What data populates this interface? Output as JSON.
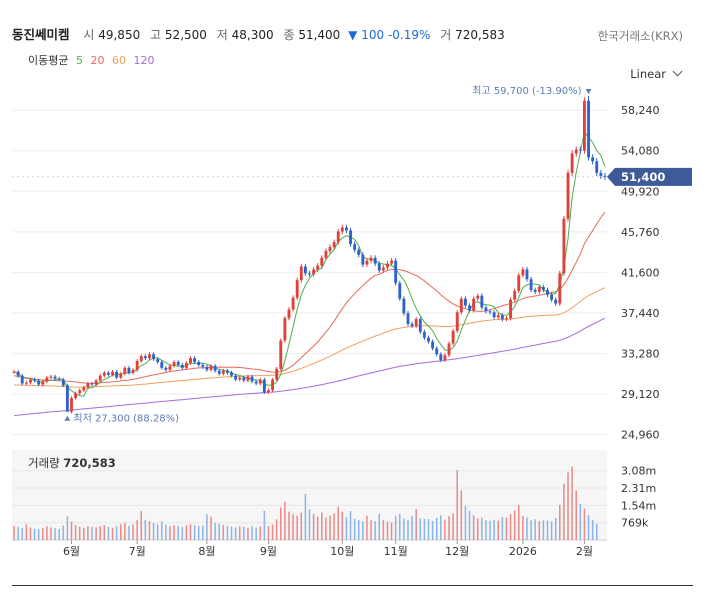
{
  "header": {
    "name": "동진쎄미켐",
    "open_label": "시",
    "open": "49,850",
    "high_label": "고",
    "high": "52,500",
    "low_label": "저",
    "low": "48,300",
    "close_label": "종",
    "close": "51,400",
    "change": "▼ 100",
    "change_pct": "-0.19%",
    "volume_label": "거",
    "volume": "720,583",
    "exchange": "한국거래소(KRX)"
  },
  "ma_legend": {
    "title": "이동평균",
    "items": [
      {
        "period": "5",
        "color": "#4caf50"
      },
      {
        "period": "20",
        "color": "#e86a5d"
      },
      {
        "period": "60",
        "color": "#f0a060"
      },
      {
        "period": "120",
        "color": "#a86ad8"
      }
    ]
  },
  "scale": {
    "label": "Linear"
  },
  "chart_data": {
    "type": "candlestick",
    "y_ticks": [
      "58,240",
      "54,080",
      "49,920",
      "45,760",
      "41,600",
      "37,440",
      "33,280",
      "29,120",
      "24,960"
    ],
    "y_tick_values": [
      58240,
      54080,
      49920,
      45760,
      41600,
      37440,
      33280,
      29120,
      24960
    ],
    "ylim": [
      24400,
      59800
    ],
    "x_ticks": [
      "6월",
      "7월",
      "8월",
      "9월",
      "10월",
      "11월",
      "12월",
      "2026",
      "2월"
    ],
    "x_tick_index": [
      14,
      30,
      47,
      62,
      80,
      93,
      108,
      124,
      139
    ],
    "n_days": 145,
    "price_badge": "51,400",
    "price_badge_value": 51400,
    "max_label": "최고 59,700 (-13.90%)",
    "max_value": 59700,
    "max_index": 140,
    "min_label": "최저 27,300 (88.28%)",
    "min_value": 27300,
    "min_index": 13,
    "closes": [
      31400,
      31000,
      30200,
      30300,
      30600,
      30500,
      30100,
      30400,
      30800,
      30900,
      30700,
      30600,
      30000,
      27300,
      28700,
      29200,
      29500,
      29800,
      30200,
      30100,
      30500,
      31000,
      31300,
      31100,
      31400,
      30800,
      31200,
      31800,
      31300,
      31600,
      32500,
      33000,
      32800,
      33200,
      32700,
      32400,
      31800,
      31600,
      32000,
      32400,
      32100,
      31800,
      32300,
      32800,
      32400,
      32100,
      31900,
      31600,
      32000,
      31500,
      31200,
      31500,
      31300,
      31000,
      30600,
      30800,
      30500,
      30900,
      30400,
      30200,
      30600,
      29300,
      29500,
      30600,
      31700,
      34600,
      36900,
      37800,
      39000,
      40800,
      42200,
      41500,
      41400,
      41900,
      42300,
      43100,
      43800,
      44200,
      44700,
      45800,
      46200,
      45900,
      44500,
      43900,
      43400,
      42400,
      42800,
      43100,
      42500,
      41800,
      42100,
      42500,
      42800,
      40500,
      38900,
      37400,
      36300,
      36100,
      36800,
      35500,
      34900,
      34500,
      33800,
      33200,
      32600,
      33100,
      34300,
      35600,
      37500,
      38900,
      38200,
      37700,
      38900,
      39200,
      38000,
      37600,
      37500,
      37000,
      37200,
      36800,
      36900,
      38800,
      39700,
      41300,
      41900,
      40900,
      39800,
      39600,
      40100,
      39800,
      39300,
      38800,
      38400,
      41500,
      47100,
      51800,
      53800,
      54200,
      54100,
      59200,
      53400,
      53000,
      51800,
      51500,
      51400
    ],
    "ma5": [
      31400,
      31200,
      30867,
      30725,
      30700,
      30520,
      30340,
      30380,
      30540,
      30540,
      30560,
      30680,
      30600,
      29840,
      29460,
      29160,
      28940,
      28900,
      29740,
      29760,
      30020,
      30320,
      30620,
      30800,
      31060,
      31120,
      31160,
      31260,
      31300,
      31340,
      31680,
      32040,
      32240,
      32620,
      32840,
      32820,
      32580,
      32340,
      32100,
      32040,
      31980,
      31940,
      32020,
      32280,
      32280,
      32280,
      32300,
      32160,
      32000,
      31820,
      31640,
      31560,
      31500,
      31300,
      31120,
      31040,
      30840,
      30760,
      30640,
      30560,
      30520,
      30160,
      30000,
      30040,
      30340,
      31140,
      32540,
      34240,
      36000,
      37820,
      39340,
      40260,
      40980,
      41560,
      41860,
      42040,
      42900,
      43460,
      43920,
      44760,
      45140,
      45360,
      45220,
      44960,
      44360,
      43220,
      43000,
      42920,
      42840,
      42520,
      42460,
      42400,
      42340,
      41940,
      41360,
      40820,
      39980,
      38880,
      37900,
      37140,
      36480,
      36100,
      35640,
      34820,
      34200,
      33640,
      33560,
      33880,
      34520,
      35680,
      36700,
      37680,
      38440,
      38580,
      38400,
      38280,
      38240,
      38060,
      37460,
      37220,
      37200,
      37540,
      38080,
      39040,
      40040,
      40340,
      40440,
      40380,
      40300,
      39820,
      39560,
      39340,
      39440,
      40360,
      42140,
      45040,
      49240,
      51860,
      53920,
      56020,
      55440,
      54940,
      54120,
      53600,
      52480
    ],
    "ma20": [
      31000,
      30920,
      30850,
      30780,
      30720,
      30660,
      30600,
      30560,
      30540,
      30520,
      30500,
      30480,
      30460,
      30420,
      30400,
      30360,
      30300,
      30260,
      30220,
      30200,
      30220,
      30270,
      30300,
      30320,
      30360,
      30400,
      30460,
      30520,
      30560,
      30620,
      30700,
      30810,
      30900,
      30990,
      31080,
      31160,
      31250,
      31340,
      31420,
      31480,
      31540,
      31590,
      31640,
      31700,
      31760,
      31800,
      31820,
      31820,
      31850,
      31870,
      31880,
      31870,
      31880,
      31870,
      31860,
      31840,
      31800,
      31750,
      31690,
      31650,
      31600,
      31500,
      31420,
      31370,
      31360,
      31430,
      31580,
      31800,
      32080,
      32450,
      32850,
      33250,
      33630,
      34030,
      34460,
      34960,
      35460,
      35990,
      36580,
      37260,
      37860,
      38480,
      38960,
      39410,
      39830,
      40230,
      40630,
      41000,
      41300,
      41400,
      41620,
      41770,
      41900,
      41910,
      41870,
      41780,
      41640,
      41450,
      41280,
      41010,
      40730,
      40390,
      40040,
      39700,
      39320,
      38960,
      38640,
      38360,
      38150,
      38000,
      37870,
      37740,
      37650,
      37610,
      37600,
      37660,
      37770,
      37900,
      38030,
      38160,
      38290,
      38420,
      38530,
      38720,
      38900,
      39050,
      39100,
      39180,
      39250,
      39340,
      39420,
      39530,
      39610,
      39830,
      40310,
      41010,
      41800,
      42620,
      43460,
      44540,
      45230,
      45880,
      46550,
      47210,
      47760
    ],
    "ma60": [
      30050,
      30040,
      30030,
      30020,
      30000,
      29990,
      29980,
      29970,
      29960,
      29950,
      29940,
      29930,
      29920,
      29880,
      29850,
      29830,
      29820,
      29830,
      29850,
      29860,
      29880,
      29900,
      29920,
      29930,
      29950,
      29960,
      29980,
      30000,
      30010,
      30030,
      30060,
      30100,
      30140,
      30190,
      30230,
      30270,
      30310,
      30350,
      30390,
      30430,
      30460,
      30500,
      30540,
      30580,
      30620,
      30660,
      30700,
      30730,
      30760,
      30790,
      30820,
      30850,
      30880,
      30910,
      30930,
      30950,
      30970,
      30990,
      31000,
      31010,
      31010,
      31010,
      31020,
      31040,
      31080,
      31140,
      31220,
      31330,
      31450,
      31590,
      31750,
      31920,
      32080,
      32250,
      32420,
      32610,
      32800,
      32990,
      33200,
      33420,
      33640,
      33840,
      34020,
      34200,
      34380,
      34540,
      34720,
      34900,
      35060,
      35200,
      35370,
      35530,
      35680,
      35790,
      35880,
      35940,
      36000,
      36040,
      36090,
      36110,
      36120,
      36120,
      36110,
      36090,
      36060,
      36040,
      36050,
      36080,
      36140,
      36230,
      36300,
      36370,
      36450,
      36540,
      36600,
      36650,
      36700,
      36730,
      36760,
      36770,
      36790,
      36830,
      36870,
      36930,
      37000,
      37050,
      37090,
      37120,
      37160,
      37180,
      37200,
      37220,
      37220,
      37300,
      37460,
      37700,
      37980,
      38290,
      38610,
      38960,
      39210,
      39430,
      39630,
      39830,
      40030
    ],
    "ma120": [
      26900,
      26950,
      27000,
      27040,
      27080,
      27120,
      27160,
      27200,
      27240,
      27280,
      27320,
      27360,
      27400,
      27430,
      27470,
      27510,
      27550,
      27590,
      27630,
      27670,
      27710,
      27750,
      27790,
      27830,
      27870,
      27910,
      27950,
      27990,
      28030,
      28070,
      28110,
      28150,
      28190,
      28230,
      28270,
      28310,
      28350,
      28390,
      28420,
      28460,
      28500,
      28540,
      28580,
      28620,
      28660,
      28700,
      28740,
      28780,
      28810,
      28850,
      28890,
      28930,
      28970,
      29010,
      29040,
      29080,
      29110,
      29140,
      29170,
      29200,
      29230,
      29260,
      29290,
      29320,
      29360,
      29400,
      29450,
      29510,
      29570,
      29630,
      29700,
      29770,
      29850,
      29920,
      30000,
      30080,
      30170,
      30260,
      30350,
      30450,
      30550,
      30650,
      30760,
      30870,
      30980,
      31080,
      31180,
      31280,
      31380,
      31480,
      31580,
      31680,
      31780,
      31870,
      31950,
      32020,
      32090,
      32160,
      32220,
      32280,
      32330,
      32380,
      32430,
      32480,
      32530,
      32580,
      32630,
      32680,
      32740,
      32810,
      32870,
      32940,
      33010,
      33080,
      33150,
      33220,
      33290,
      33360,
      33430,
      33500,
      33570,
      33650,
      33730,
      33810,
      33900,
      33980,
      34060,
      34140,
      34220,
      34300,
      34380,
      34460,
      34530,
      34630,
      34770,
      34940,
      35140,
      35350,
      35570,
      35830,
      36050,
      36270,
      36480,
      36690,
      36900
    ],
    "volume_title": "거래량",
    "volume_value": "720,583",
    "volume_ticks": [
      "3.08m",
      "2.31m",
      "1.54m",
      "769k"
    ],
    "volume_tick_values": [
      3080000,
      2310000,
      1540000,
      769000
    ],
    "volume_max": 4000000,
    "volumes": [
      620000,
      580000,
      540000,
      700000,
      560000,
      500000,
      480000,
      530000,
      610000,
      560000,
      520000,
      490000,
      640000,
      1050000,
      820000,
      660000,
      590000,
      540000,
      620000,
      580000,
      560000,
      610000,
      660000,
      580000,
      540000,
      620000,
      700000,
      760000,
      640000,
      690000,
      880000,
      1280000,
      900000,
      840000,
      760000,
      700000,
      820000,
      680000,
      610000,
      660000,
      620000,
      580000,
      640000,
      700000,
      660000,
      620000,
      640000,
      1150000,
      1040000,
      760000,
      720000,
      660000,
      620000,
      590000,
      560000,
      610000,
      580000,
      540000,
      620000,
      560000,
      600000,
      1300000,
      620000,
      690000,
      920000,
      1450000,
      1700000,
      1260000,
      1140000,
      1080000,
      1220000,
      2050000,
      1380000,
      1160000,
      1040000,
      1220000,
      1000000,
      1080000,
      1180000,
      1480000,
      1260000,
      1010000,
      1280000,
      940000,
      880000,
      820000,
      1080000,
      880000,
      840000,
      1160000,
      880000,
      820000,
      780000,
      1080000,
      1160000,
      960000,
      880000,
      1060000,
      1380000,
      960000,
      940000,
      920000,
      840000,
      980000,
      1100000,
      900000,
      1060000,
      1180000,
      3100000,
      2200000,
      1500000,
      1300000,
      1100000,
      960000,
      1000000,
      880000,
      860000,
      900000,
      860000,
      1020000,
      1000000,
      1160000,
      1300000,
      1560000,
      1080000,
      1000000,
      880000,
      920000,
      840000,
      880000,
      860000,
      820000,
      980000,
      1560000,
      2500000,
      3000000,
      3250000,
      2200000,
      1600000,
      1400000,
      1100000,
      900000,
      720583
    ]
  }
}
